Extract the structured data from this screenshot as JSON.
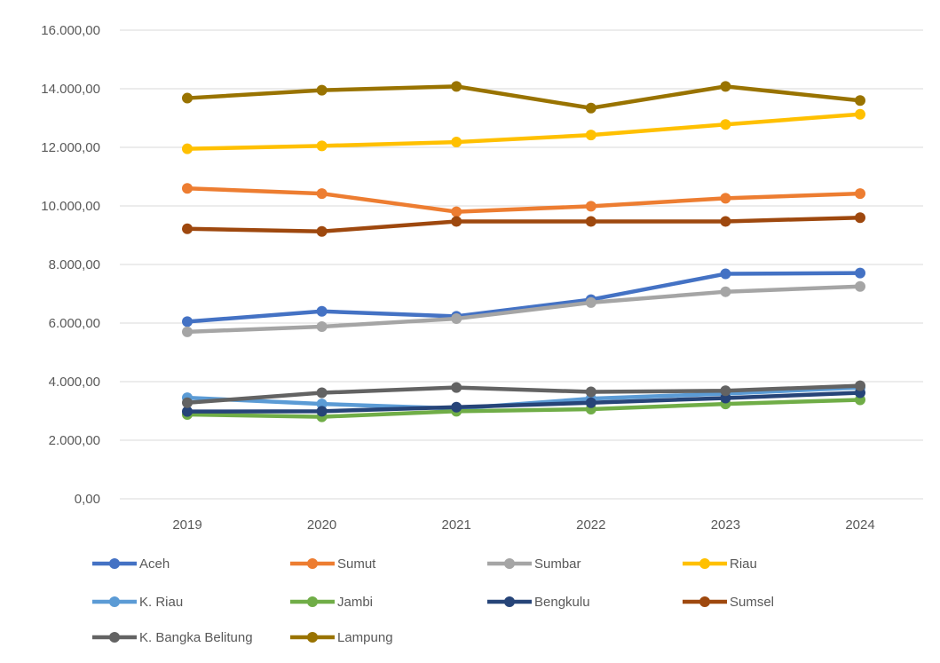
{
  "chart_data": {
    "type": "line",
    "title": "",
    "xlabel": "",
    "ylabel": "",
    "x": [
      "2019",
      "2020",
      "2021",
      "2022",
      "2023",
      "2024"
    ],
    "ylim": [
      0,
      16000
    ],
    "y_ticks": [
      {
        "value": 0,
        "label": "0,00"
      },
      {
        "value": 2000,
        "label": "2.000,00"
      },
      {
        "value": 4000,
        "label": "4.000,00"
      },
      {
        "value": 6000,
        "label": "6.000,00"
      },
      {
        "value": 8000,
        "label": "8.000,00"
      },
      {
        "value": 10000,
        "label": "10.000,00"
      },
      {
        "value": 12000,
        "label": "12.000,00"
      },
      {
        "value": 14000,
        "label": "14.000,00"
      },
      {
        "value": 16000,
        "label": "16.000,00"
      }
    ],
    "grid": "horizontal",
    "legend_position": "bottom",
    "series": [
      {
        "name": "Aceh",
        "color": "#4472C4",
        "values": [
          6050,
          6400,
          6230,
          6800,
          7680,
          7710
        ]
      },
      {
        "name": "Sumut",
        "color": "#ED7D31",
        "values": [
          10600,
          10420,
          9800,
          9990,
          10260,
          10420
        ]
      },
      {
        "name": "Sumbar",
        "color": "#A5A5A5",
        "values": [
          5700,
          5880,
          6150,
          6700,
          7070,
          7250
        ]
      },
      {
        "name": "Riau",
        "color": "#FFC000",
        "values": [
          11950,
          12050,
          12180,
          12420,
          12780,
          13130
        ]
      },
      {
        "name": "K. Riau",
        "color": "#5B9BD5",
        "values": [
          3450,
          3240,
          3080,
          3420,
          3590,
          3800
        ]
      },
      {
        "name": "Jambi",
        "color": "#70AD47",
        "values": [
          2880,
          2800,
          2990,
          3060,
          3240,
          3380
        ]
      },
      {
        "name": "Bengkulu",
        "color": "#264478",
        "values": [
          2980,
          2990,
          3130,
          3280,
          3440,
          3620
        ]
      },
      {
        "name": "Sumsel",
        "color": "#9E480E",
        "values": [
          9220,
          9130,
          9470,
          9470,
          9470,
          9600
        ]
      },
      {
        "name": "K. Bangka Belitung",
        "color": "#636363",
        "values": [
          3280,
          3620,
          3800,
          3650,
          3690,
          3860
        ]
      },
      {
        "name": "Lampung",
        "color": "#997300",
        "values": [
          13680,
          13950,
          14080,
          13340,
          14080,
          13600
        ]
      }
    ]
  }
}
